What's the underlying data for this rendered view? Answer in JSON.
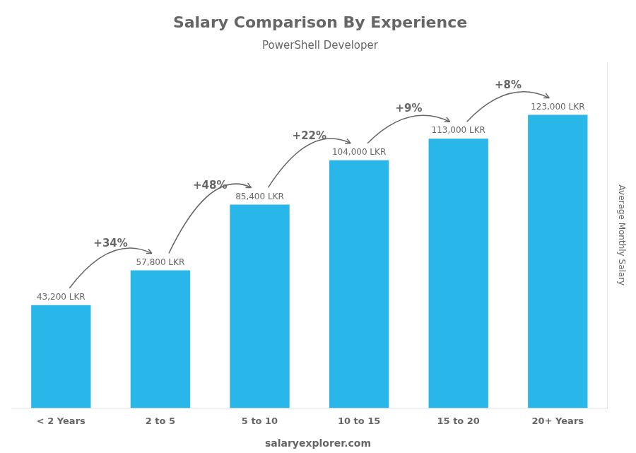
{
  "chart_data": {
    "type": "bar",
    "title": "Salary Comparison By Experience",
    "subtitle": "PowerShell Developer",
    "categories": [
      "< 2 Years",
      "2 to 5",
      "5 to 10",
      "10 to 15",
      "15 to 20",
      "20+ Years"
    ],
    "values": [
      43200,
      57800,
      85400,
      104000,
      113000,
      123000
    ],
    "value_labels": [
      "43,200 LKR",
      "57,800 LKR",
      "85,400 LKR",
      "104,000 LKR",
      "113,000 LKR",
      "123,000 LKR"
    ],
    "data_labels": true,
    "color": "#29b6e8",
    "ylabel": "Average Monthly Salary",
    "ylim": [
      0,
      145000
    ],
    "tick_labels": "x",
    "grid": false,
    "annotations": [
      "+34%",
      "+48%",
      "+22%",
      "+9%",
      "+8%"
    ],
    "footer": "salaryexplorer.com"
  }
}
